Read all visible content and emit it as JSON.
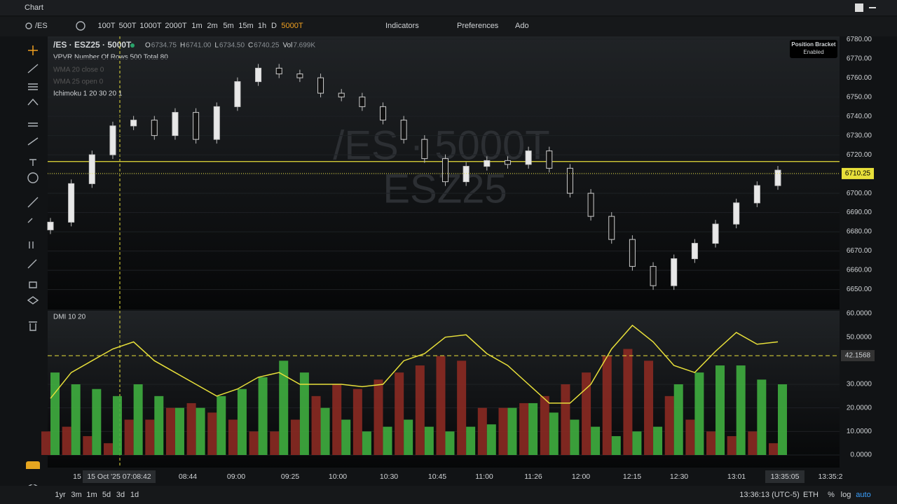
{
  "window_title": "Chart",
  "symbol_box": "/ES",
  "toolbar": {
    "timeframes": [
      "100T",
      "500T",
      "1000T",
      "2000T",
      "1m",
      "2m",
      "5m",
      "15m",
      "1h",
      "D",
      "5000T"
    ],
    "indicators": "Indicators",
    "preferences": "Preferences",
    "add": "Ado"
  },
  "legend": {
    "symbol": "/ES · ESZ25 · 5000T",
    "ohlc": [
      {
        "key": "O",
        "value": "6734.75"
      },
      {
        "key": "H",
        "value": "6741.00"
      },
      {
        "key": "L",
        "value": "6734.50"
      },
      {
        "key": "C",
        "value": "6740.25"
      },
      {
        "key": "Vol",
        "value": "7.699K"
      }
    ],
    "studies": [
      "VPVR Number Of Rows 500 Total 80",
      "WMA 20 close 0",
      "WMA 25 open 0",
      "Ichimoku 1 20 30 20 1"
    ]
  },
  "watermark": [
    "/ES · 5000T",
    "ESZ25"
  ],
  "position_bracket": {
    "title": "Position Bracket",
    "state": "Enabled"
  },
  "chart_data": [
    {
      "type": "candlestick",
      "ylim": [
        6640.4,
        6781.5
      ],
      "yticks": [
        {
          "value": 6780,
          "label": "6780.00"
        },
        {
          "value": 6770,
          "label": "6770.00"
        },
        {
          "value": 6760,
          "label": "6760.00"
        },
        {
          "value": 6750,
          "label": "6750.00"
        },
        {
          "value": 6740,
          "label": "6740.00"
        },
        {
          "value": 6730,
          "label": "6730.00"
        },
        {
          "value": 6720,
          "label": "6720.00"
        },
        {
          "value": 6710,
          "label": "6710.00"
        },
        {
          "value": 6700,
          "label": "6700.00"
        },
        {
          "value": 6690,
          "label": "6690.00"
        },
        {
          "value": 6680,
          "label": "6680.00"
        },
        {
          "value": 6670,
          "label": "6670.00"
        },
        {
          "value": 6660,
          "label": "6660.00"
        },
        {
          "value": 6650,
          "label": "6650.00"
        }
      ],
      "values": [
        6685,
        6705,
        6720,
        6735,
        6738,
        6730,
        6742,
        6728,
        6745,
        6758,
        6765,
        6762,
        6760,
        6752,
        6750,
        6745,
        6738,
        6728,
        6718,
        6706,
        6714,
        6717,
        6715,
        6722,
        6713,
        6700,
        6688,
        6676,
        6662,
        6652,
        6666,
        6674,
        6684,
        6695,
        6704,
        6712
      ],
      "last_price": 6710.25,
      "horizontal_line": 6716.5
    },
    {
      "type": "dmi",
      "title": "DMI 10 20",
      "ylim": [
        0,
        60
      ],
      "yticks": [
        {
          "value": 60,
          "label": "60.0000"
        },
        {
          "value": 50,
          "label": "50.0000"
        },
        {
          "value": 30,
          "label": "30.0000"
        },
        {
          "value": 20,
          "label": "20.0000"
        },
        {
          "value": 10,
          "label": "10.0000"
        },
        {
          "value": 0,
          "label": "0.0000"
        }
      ],
      "level": 42.1568,
      "series": [
        {
          "name": "DI-",
          "color": "#8b2a22",
          "values": [
            10,
            12,
            8,
            5,
            15,
            15,
            20,
            22,
            18,
            15,
            10,
            10,
            15,
            25,
            30,
            28,
            32,
            35,
            38,
            42,
            40,
            20,
            20,
            22,
            25,
            30,
            35,
            42,
            45,
            40,
            25,
            15,
            10,
            8,
            10,
            5
          ]
        },
        {
          "name": "DI+",
          "color": "#3fae3f",
          "values": [
            35,
            30,
            28,
            25,
            30,
            25,
            20,
            20,
            25,
            28,
            33,
            40,
            35,
            20,
            15,
            10,
            12,
            15,
            12,
            10,
            12,
            13,
            20,
            22,
            18,
            15,
            12,
            8,
            10,
            12,
            30,
            35,
            38,
            38,
            32,
            30
          ]
        },
        {
          "name": "ADX",
          "color": "#e8e03a",
          "values": [
            24,
            35,
            40,
            45,
            48,
            40,
            35,
            30,
            25,
            28,
            33,
            35,
            30,
            30,
            30,
            29,
            30,
            40,
            43,
            50,
            51,
            43,
            38,
            30,
            22,
            22,
            30,
            45,
            55,
            48,
            38,
            35,
            44,
            52,
            47,
            48
          ]
        }
      ]
    }
  ],
  "time_axis": [
    "15",
    "15 Oct '25  07:08:42",
    "08:44",
    "09:00",
    "09:25",
    "10:00",
    "10:30",
    "10:45",
    "11:00",
    "11:26",
    "12:00",
    "12:15",
    "12:30",
    "13:01",
    "13:35:05",
    "13:35:2"
  ],
  "footer": {
    "ranges": [
      "1yr",
      "3m",
      "1m",
      "5d",
      "3d",
      "1d"
    ],
    "clock": "13:36:13 (UTC-5)",
    "session": "ETH",
    "options": [
      "%",
      "log",
      "auto"
    ]
  }
}
